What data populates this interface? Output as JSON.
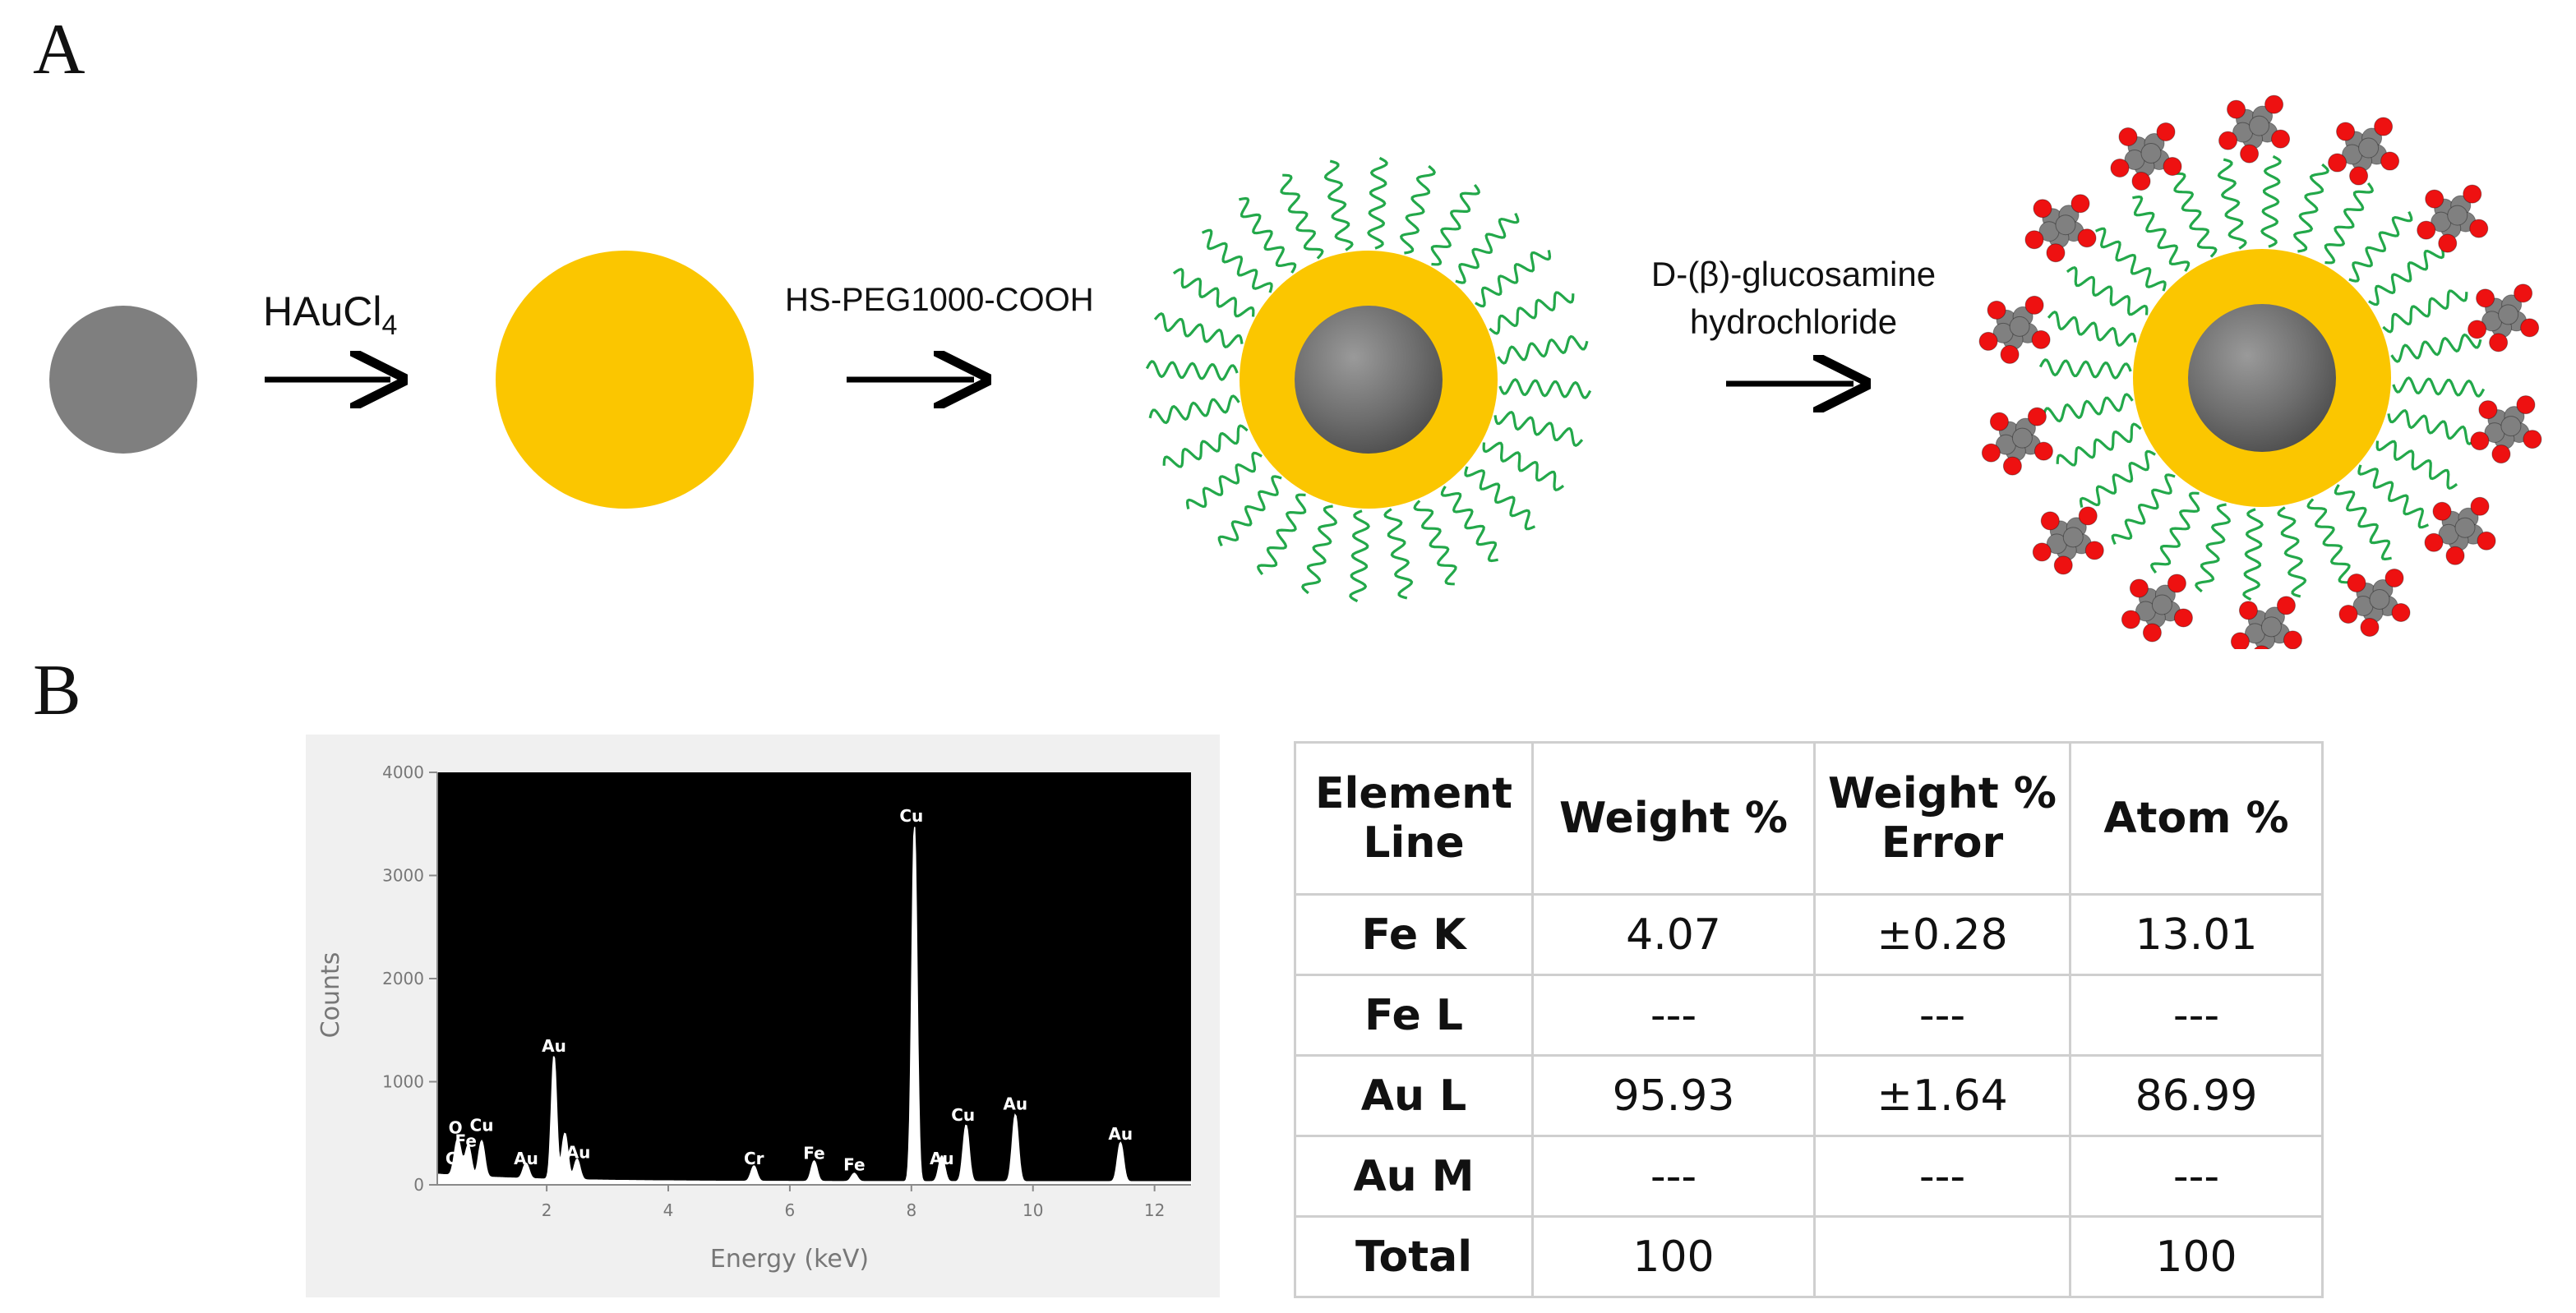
{
  "panels": {
    "a": "A",
    "b": "B"
  },
  "scheme": {
    "reagent1_main": "HAuCl",
    "reagent1_sub": "4",
    "reagent2": "HS-PEG1000-COOH",
    "reagent3_line1": "D-(β)-glucosamine",
    "reagent3_line2": "hydrochloride"
  },
  "chart_data": {
    "type": "line",
    "xlabel": "Energy (keV)",
    "ylabel": "Counts",
    "xlim": [
      0.2,
      12.6
    ],
    "ylim": [
      0,
      4000
    ],
    "xticks": [
      "2",
      "4",
      "6",
      "8",
      "10",
      "12"
    ],
    "yticks": [
      "0",
      "1000",
      "2000",
      "3000",
      "4000"
    ],
    "background": "#000000",
    "peaks": [
      {
        "label": "Cr",
        "energy": 0.57,
        "counts": 150
      },
      {
        "label": "O",
        "energy": 0.52,
        "counts": 250
      },
      {
        "label": "Fe",
        "energy": 0.71,
        "counts": 300
      },
      {
        "label": "Cu",
        "energy": 0.93,
        "counts": 350
      },
      {
        "label": "Au",
        "energy": 1.66,
        "counts": 150
      },
      {
        "label": "Au",
        "energy": 2.12,
        "counts": 1200
      },
      {
        "label": "Au",
        "energy": 2.3,
        "counts": 450
      },
      {
        "label": "Au",
        "energy": 2.5,
        "counts": 200
      },
      {
        "label": "Cr",
        "energy": 5.41,
        "counts": 150
      },
      {
        "label": "Fe",
        "energy": 6.4,
        "counts": 200
      },
      {
        "label": "Fe",
        "energy": 7.06,
        "counts": 80
      },
      {
        "label": "Cu",
        "energy": 8.05,
        "counts": 3450
      },
      {
        "label": "Au",
        "energy": 8.5,
        "counts": 250
      },
      {
        "label": "Cu",
        "energy": 8.9,
        "counts": 550
      },
      {
        "label": "Au",
        "energy": 9.71,
        "counts": 650
      },
      {
        "label": "Au",
        "energy": 11.44,
        "counts": 380
      }
    ],
    "peak_labels": [
      {
        "text": "O",
        "energy": 0.5,
        "counts": 500
      },
      {
        "text": "Cu",
        "energy": 0.93,
        "counts": 520
      },
      {
        "text": "Fe",
        "energy": 0.67,
        "counts": 370
      },
      {
        "text": "Cr",
        "energy": 0.5,
        "counts": 200
      },
      {
        "text": "Au",
        "energy": 1.66,
        "counts": 200
      },
      {
        "text": "Au",
        "energy": 2.12,
        "counts": 1290
      },
      {
        "text": "Au",
        "energy": 2.52,
        "counts": 260
      },
      {
        "text": "Cr",
        "energy": 5.41,
        "counts": 200
      },
      {
        "text": "Fe",
        "energy": 6.4,
        "counts": 250
      },
      {
        "text": "Fe",
        "energy": 7.06,
        "counts": 140
      },
      {
        "text": "Cu",
        "energy": 8.0,
        "counts": 3520
      },
      {
        "text": "Au",
        "energy": 8.5,
        "counts": 200
      },
      {
        "text": "Cu",
        "energy": 8.85,
        "counts": 620
      },
      {
        "text": "Au",
        "energy": 9.71,
        "counts": 730
      },
      {
        "text": "Au",
        "energy": 11.44,
        "counts": 440
      }
    ]
  },
  "table": {
    "headers": [
      "Element\nLine",
      "Weight %",
      "Weight %\nError",
      "Atom %"
    ],
    "rows": [
      [
        "Fe K",
        "4.07",
        "±0.28",
        "13.01"
      ],
      [
        "Fe L",
        "---",
        "---",
        "---"
      ],
      [
        "Au L",
        "95.93",
        "±1.64",
        "86.99"
      ],
      [
        "Au M",
        "---",
        "---",
        "---"
      ],
      [
        "Total",
        "100",
        "",
        "100"
      ]
    ]
  },
  "colors": {
    "core": "#7f7f7f",
    "gold": "#fbc600",
    "peg": "#23a84a",
    "oxygen": "#ee1111",
    "carbon": "#808080"
  }
}
